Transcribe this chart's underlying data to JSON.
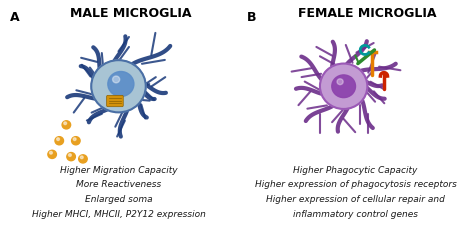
{
  "panel_A_bg": "#deeaf1",
  "panel_B_bg": "#e8d5e8",
  "panel_A_title": "MALE MICROGLIA",
  "panel_B_title": "FEMALE MICROGLIA",
  "label_A": "A",
  "label_B": "B",
  "panel_A_text": [
    "Higher Migration Capacity",
    "More Reactiveness",
    "Enlarged soma",
    "Higher MHCI, MHCII, P2Y12 expression"
  ],
  "panel_B_text": [
    "Higher Phagocytic Capacity",
    "Higher expression of phagocytosis receptors",
    "Higher expression of cellular repair and",
    "inflammatory control genes"
  ],
  "title_fontsize": 9,
  "label_fontsize": 9,
  "body_fontsize": 6.5,
  "male_cell_color": "#4a6fa5",
  "male_cell_light": "#a8c4d4",
  "male_nucleus_color": "#5b8dc8",
  "male_branch_color": "#1a3a7a",
  "male_dot_color": "#e8a020",
  "female_cell_color": "#9b59b6",
  "female_cell_light": "#c39bd3",
  "female_branch_color": "#6c2d8a",
  "female_nucleus_color": "#8e44ad"
}
